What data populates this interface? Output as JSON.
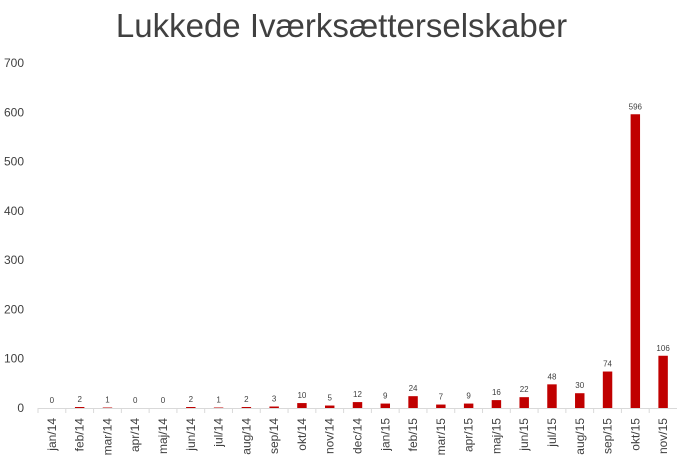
{
  "chart_data": {
    "type": "bar",
    "title": "Lukkede Iværksætterselskaber",
    "xlabel": "",
    "ylabel": "",
    "ylim": [
      0,
      700
    ],
    "yticks": [
      "0",
      "100",
      "200",
      "300",
      "400",
      "500",
      "600",
      "700"
    ],
    "grid": false,
    "legend": "none",
    "bar_color": "#c00000",
    "categories": [
      "jan/14",
      "feb/14",
      "mar/14",
      "apr/14",
      "maj/14",
      "jun/14",
      "jul/14",
      "aug/14",
      "sep/14",
      "okt/14",
      "nov/14",
      "dec/14",
      "jan/15",
      "feb/15",
      "mar/15",
      "apr/15",
      "maj/15",
      "jun/15",
      "jul/15",
      "aug/15",
      "sep/15",
      "okt/15",
      "nov/15"
    ],
    "values": [
      0,
      2,
      1,
      0,
      0,
      2,
      1,
      2,
      3,
      10,
      5,
      12,
      9,
      24,
      7,
      9,
      16,
      22,
      48,
      30,
      74,
      596,
      106
    ],
    "data_labels": [
      "0",
      "2",
      "1",
      "0",
      "0",
      "2",
      "1",
      "2",
      "3",
      "10",
      "5",
      "12",
      "9",
      "24",
      "7",
      "9",
      "16",
      "22",
      "48",
      "30",
      "74",
      "596",
      "106"
    ]
  }
}
